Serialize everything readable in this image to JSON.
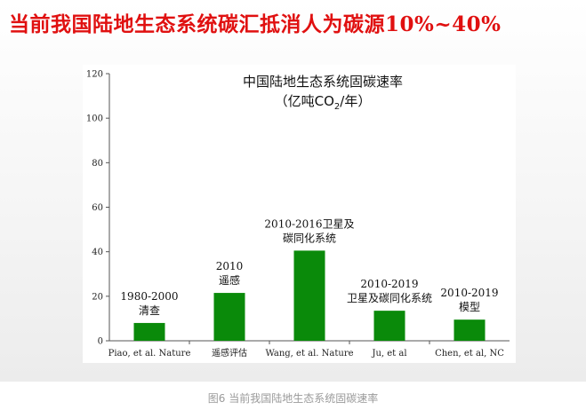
{
  "headline": "当前我国陆地生态系统碳汇抵消人为碳源10%~40%",
  "caption": "图6 当前我国陆地生态系统固碳速率",
  "chart_data": {
    "type": "bar",
    "title": "中国陆地生态系统固碳速率",
    "subtitle_prefix": "（亿吨CO",
    "subtitle_sub": "2",
    "subtitle_suffix": "/年）",
    "categories": [
      "Piao, et al. Nature",
      "遥感评估",
      "Wang, et al. Nature",
      "Ju, et al",
      "Chen, et al, NC"
    ],
    "values": [
      8,
      21.5,
      40.5,
      13.5,
      9.5
    ],
    "annotations": [
      [
        "1980-2000",
        "清查"
      ],
      [
        "2010",
        "遥感"
      ],
      [
        "2010-2016卫星及",
        "碳同化系统"
      ],
      [
        "2010-2019",
        "卫星及碳同化系统"
      ],
      [
        "2010-2019",
        "模型"
      ]
    ],
    "yticks": [
      0,
      20,
      40,
      60,
      80,
      100,
      120
    ],
    "ylim": [
      0,
      120
    ],
    "bar_color": "#0a8a0a"
  }
}
